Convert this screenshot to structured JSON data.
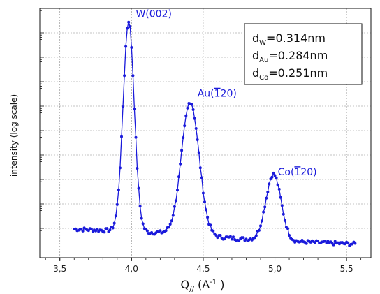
{
  "colors": {
    "series": "#1a1adb",
    "axis": "#111111",
    "grid": "#888888"
  },
  "chart_data": {
    "type": "line",
    "xlabel": "Q// (A-1 )",
    "xlabel_parts": {
      "main": "Q",
      "sub": "//",
      "unit_open": " (A",
      "unit_sup": "-1",
      "unit_close": " )"
    },
    "ylabel": "intensity (log scale)",
    "xlim": [
      3.36,
      5.67
    ],
    "ylim": [
      0,
      1
    ],
    "x_ticks": [
      3.5,
      4.0,
      4.5,
      5.0,
      5.5
    ],
    "x_tick_labels": [
      "3,5",
      "4,0",
      "4,5",
      "5,0",
      "5,5"
    ],
    "grid": true,
    "y_scale": "log",
    "y_units": "relative",
    "series": [
      {
        "markers": true,
        "peaks": [
          {
            "center": 3.98,
            "height": 0.95,
            "width": 0.039
          },
          {
            "center": 4.41,
            "height": 0.625,
            "width": 0.061
          },
          {
            "center": 4.99,
            "height": 0.335,
            "width": 0.053
          }
        ],
        "baseline": [
          [
            3.6,
            0.115
          ],
          [
            4.2,
            0.1
          ],
          [
            4.9,
            0.07
          ],
          [
            5.55,
            0.055
          ]
        ],
        "x_start": 3.6,
        "x_end": 5.56,
        "step": 0.01
      }
    ],
    "annotations": [
      {
        "text": "W(002)",
        "x": 4.03,
        "y": 0.965
      },
      {
        "text": "Au(̅120)",
        "main": "Au(",
        "bar": "1",
        "rest": "20)",
        "x": 4.46,
        "y": 0.645
      },
      {
        "text": "Co(̅120)",
        "main": "Co(",
        "bar": "1",
        "rest": "20)",
        "x": 5.02,
        "y": 0.33
      }
    ],
    "d_spacings": [
      {
        "symbol": "d",
        "sub": "W",
        "value": "=0.314nm"
      },
      {
        "symbol": "d",
        "sub": "Au",
        "value": "=0.284nm"
      },
      {
        "symbol": "d",
        "sub": "Co",
        "value": "=0.251nm"
      }
    ]
  }
}
